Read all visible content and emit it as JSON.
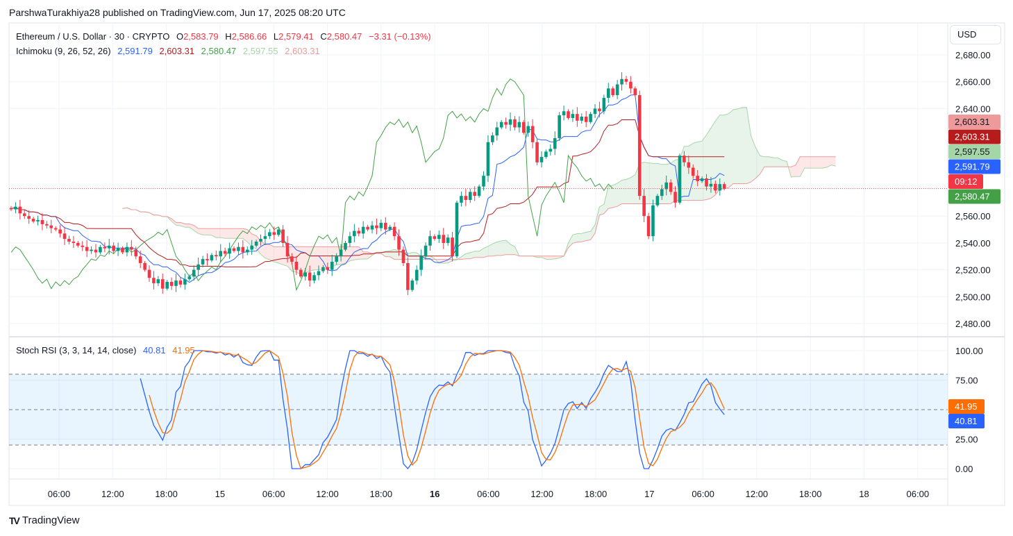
{
  "header": {
    "publisher_line": "ParshwaTurakhiya28 published on TradingView.com, Jun 17, 2025 08:20 UTC"
  },
  "legend": {
    "symbol": "Ethereum / U.S. Dollar · 30 · CRYPTO",
    "o_label": "O",
    "o": "2,583.79",
    "h_label": "H",
    "h": "2,586.66",
    "l_label": "L",
    "l": "2,579.41",
    "c_label": "C",
    "c": "2,580.47",
    "change": "−3.31 (−0.13%)",
    "ichimoku_label": "Ichimoku (9, 26, 52, 26)",
    "ichimoku_values": [
      "2,591.79",
      "2,603.31",
      "2,580.47",
      "2,597.55",
      "2,603.31"
    ],
    "stoch_label": "Stoch RSI (3, 3, 14, 14, close)",
    "stoch_k": "40.81",
    "stoch_d": "41.95"
  },
  "currency_button": "USD",
  "price_axis_labels": [
    {
      "text": "2,603.31",
      "value": 2603.31,
      "bg": "#ef9a9a",
      "fg": "#131722",
      "row": 0
    },
    {
      "text": "2,603.31",
      "value": 2603.31,
      "bg": "#b71c1c",
      "fg": "#ffffff",
      "row": 1
    },
    {
      "text": "2,597.55",
      "value": 2597.55,
      "bg": "#a5d6a7",
      "fg": "#131722",
      "row": 2
    },
    {
      "text": "2,591.79",
      "value": 2591.79,
      "bg": "#2962ff",
      "fg": "#ffffff",
      "row": 3
    },
    {
      "text": "09:12",
      "value": null,
      "bg": "#f23645",
      "fg": "#ffffff",
      "row": 4
    },
    {
      "text": "2,580.47",
      "value": 2580.47,
      "bg": "#43a047",
      "fg": "#ffffff",
      "row": 5
    }
  ],
  "stoch_axis_labels": [
    {
      "text": "41.95",
      "bg": "#ff6d00"
    },
    {
      "text": "40.81",
      "bg": "#2962ff"
    }
  ],
  "colors": {
    "up": "#089981",
    "down": "#f23645",
    "tenkan": "#2962ff",
    "kijun": "#b71c1c",
    "lagging": "#43a047",
    "spanA": "#a5d6a7",
    "spanB": "#ef9a9a",
    "stoch_k": "#2962ff",
    "stoch_d": "#ff6d00"
  },
  "brand": "TradingView",
  "chart_data": [
    {
      "type": "candlestick",
      "interval": "30m",
      "start": "Jun 14 00:30",
      "y_ticks": [
        "2,680.00",
        "2,660.00",
        "2,640.00",
        "2,560.00",
        "2,540.00",
        "2,520.00",
        "2,500.00",
        "2,480.00"
      ],
      "y_tick_values": [
        2680,
        2660,
        2640,
        2560,
        2540,
        2520,
        2500,
        2480
      ],
      "ylim": [
        2462,
        2700
      ],
      "x_ticks": [
        {
          "label": "06:00",
          "bold": false
        },
        {
          "label": "12:00",
          "bold": false
        },
        {
          "label": "18:00",
          "bold": false
        },
        {
          "label": "15",
          "bold": false
        },
        {
          "label": "06:00",
          "bold": false
        },
        {
          "label": "12:00",
          "bold": false
        },
        {
          "label": "18:00",
          "bold": false
        },
        {
          "label": "16",
          "bold": true
        },
        {
          "label": "06:00",
          "bold": false
        },
        {
          "label": "12:00",
          "bold": false
        },
        {
          "label": "18:00",
          "bold": false
        },
        {
          "label": "17",
          "bold": false
        },
        {
          "label": "06:00",
          "bold": false
        },
        {
          "label": "12:00",
          "bold": false
        },
        {
          "label": "18:00",
          "bold": false
        },
        {
          "label": "18",
          "bold": false
        },
        {
          "label": "06:00",
          "bold": false
        }
      ],
      "last_price": 2580.47,
      "ichimoku": {
        "conversion": 9,
        "base": 26,
        "span_b": 52,
        "displacement": 26
      },
      "close": [
        2565,
        2567,
        2562,
        2560,
        2558,
        2556,
        2557,
        2554,
        2553,
        2551,
        2550,
        2547,
        2543,
        2541,
        2540,
        2538,
        2537,
        2534,
        2535,
        2533,
        2537,
        2536,
        2538,
        2534,
        2536,
        2533,
        2537,
        2535,
        2530,
        2525,
        2520,
        2514,
        2510,
        2513,
        2506,
        2511,
        2508,
        2512,
        2509,
        2513,
        2515,
        2520,
        2524,
        2528,
        2527,
        2531,
        2530,
        2534,
        2532,
        2536,
        2534,
        2537,
        2533,
        2535,
        2538,
        2541,
        2543,
        2545,
        2548,
        2546,
        2550,
        2540,
        2530,
        2526,
        2520,
        2515,
        2518,
        2512,
        2516,
        2519,
        2522,
        2520,
        2526,
        2530,
        2535,
        2540,
        2545,
        2549,
        2547,
        2552,
        2550,
        2553,
        2551,
        2555,
        2550,
        2552,
        2545,
        2535,
        2525,
        2505,
        2512,
        2520,
        2530,
        2538,
        2545,
        2543,
        2546,
        2540,
        2544,
        2530,
        2570,
        2575,
        2572,
        2578,
        2575,
        2582,
        2590,
        2615,
        2620,
        2626,
        2630,
        2628,
        2632,
        2626,
        2630,
        2622,
        2627,
        2615,
        2600,
        2604,
        2608,
        2610,
        2618,
        2635,
        2638,
        2633,
        2636,
        2631,
        2634,
        2630,
        2636,
        2640,
        2638,
        2648,
        2655,
        2650,
        2658,
        2662,
        2660,
        2655,
        2650,
        2575,
        2560,
        2545,
        2568,
        2575,
        2580,
        2585,
        2578,
        2570,
        2605,
        2600,
        2596,
        2590,
        2586,
        2588,
        2582,
        2584,
        2579,
        2583.79,
        2580.47
      ]
    },
    {
      "type": "line",
      "title": "Stoch RSI (3, 3, 14, 14, close)",
      "y_ticks": [
        "100.00",
        "75.00",
        "25.00",
        "0.00"
      ],
      "y_tick_values": [
        100,
        75,
        25,
        0
      ],
      "bands": [
        20,
        50,
        80
      ],
      "ylim": [
        0,
        100
      ],
      "last_k": 40.81,
      "last_d": 41.95
    }
  ]
}
